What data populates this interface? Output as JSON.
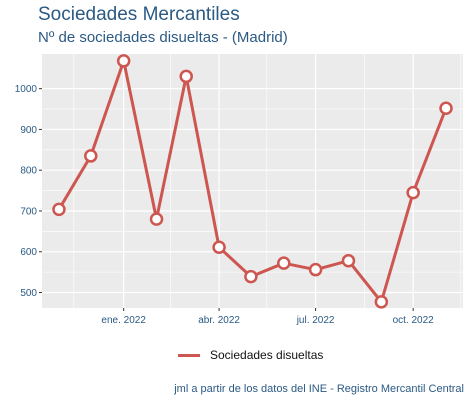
{
  "header": {
    "title": "Sociedades Mercantiles",
    "subtitle": "Nº de sociedades disueltas - (Madrid)"
  },
  "caption": "jml a partir de los datos del INE - Registro Mercantil Central",
  "colors": {
    "line": "#cd5650",
    "panel": "#ebebeb",
    "axis_text": "#2b5a84"
  },
  "chart_data": {
    "type": "line",
    "title": "Sociedades Mercantiles",
    "subtitle": "Nº de sociedades disueltas - (Madrid)",
    "x": [
      "2021-11",
      "2021-12",
      "2022-01",
      "2022-02",
      "2022-03",
      "2022-04",
      "2022-05",
      "2022-06",
      "2022-07",
      "2022-08",
      "2022-09",
      "2022-10",
      "2022-11"
    ],
    "x_ticks": [
      "ene. 2022",
      "abr. 2022",
      "jul. 2022",
      "oct. 2022"
    ],
    "y_ticks": [
      500,
      600,
      700,
      800,
      900,
      1000
    ],
    "ylim": [
      462,
      1085
    ],
    "series": [
      {
        "name": "Sociedades disueltas",
        "values": [
          704,
          835,
          1068,
          680,
          1030,
          611,
          539,
          572,
          556,
          578,
          477,
          745,
          952
        ]
      }
    ],
    "legend": "bottom",
    "grid": true
  }
}
